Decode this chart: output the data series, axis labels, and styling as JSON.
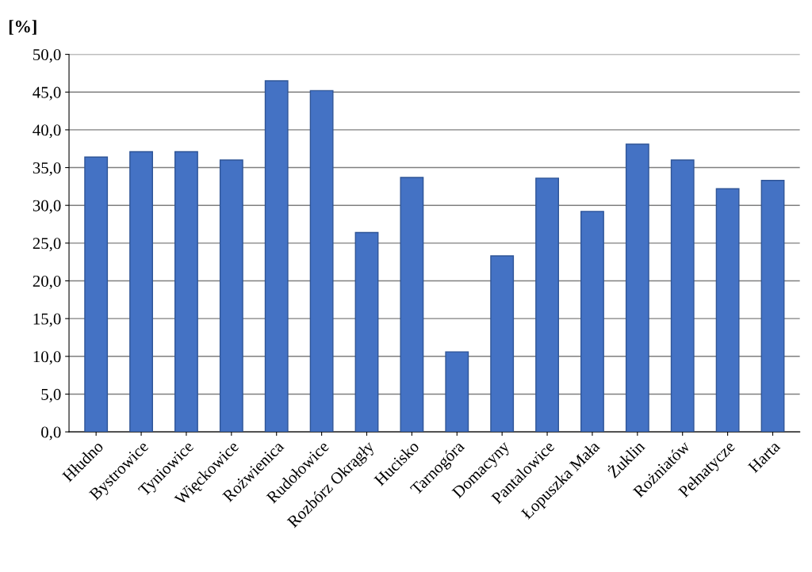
{
  "chart_data": {
    "type": "bar",
    "ylabel": "[%]",
    "categories": [
      "Hłudno",
      "Bystrowice",
      "Tyniowice",
      "Więckowice",
      "Rożwienica",
      "Rudołowice",
      "Rozbórz Okrągły",
      "Hucisko",
      "Tarnogóra",
      "Domacyny",
      "Pantalowice",
      "Łopuszka Mała",
      "Żuklin",
      "Rożniatów",
      "Pełnatycze",
      "Harta"
    ],
    "values": [
      36.4,
      37.1,
      37.1,
      36.0,
      46.5,
      45.2,
      26.4,
      33.7,
      10.6,
      23.3,
      33.6,
      29.2,
      38.1,
      36.0,
      32.2,
      33.3
    ],
    "color": "#4472c4",
    "ylim": [
      0,
      50
    ],
    "yticks": [
      {
        "value": 0,
        "label": "0,0"
      },
      {
        "value": 5,
        "label": "5,0"
      },
      {
        "value": 10,
        "label": "10,0"
      },
      {
        "value": 15,
        "label": "15,0"
      },
      {
        "value": 20,
        "label": "20,0"
      },
      {
        "value": 25,
        "label": "25,0"
      },
      {
        "value": 30,
        "label": "30,0"
      },
      {
        "value": 35,
        "label": "35,0"
      },
      {
        "value": 40,
        "label": "40,0"
      },
      {
        "value": 45,
        "label": "45,0"
      },
      {
        "value": 50,
        "label": "50,0"
      }
    ],
    "grid": "y",
    "legend": false
  }
}
